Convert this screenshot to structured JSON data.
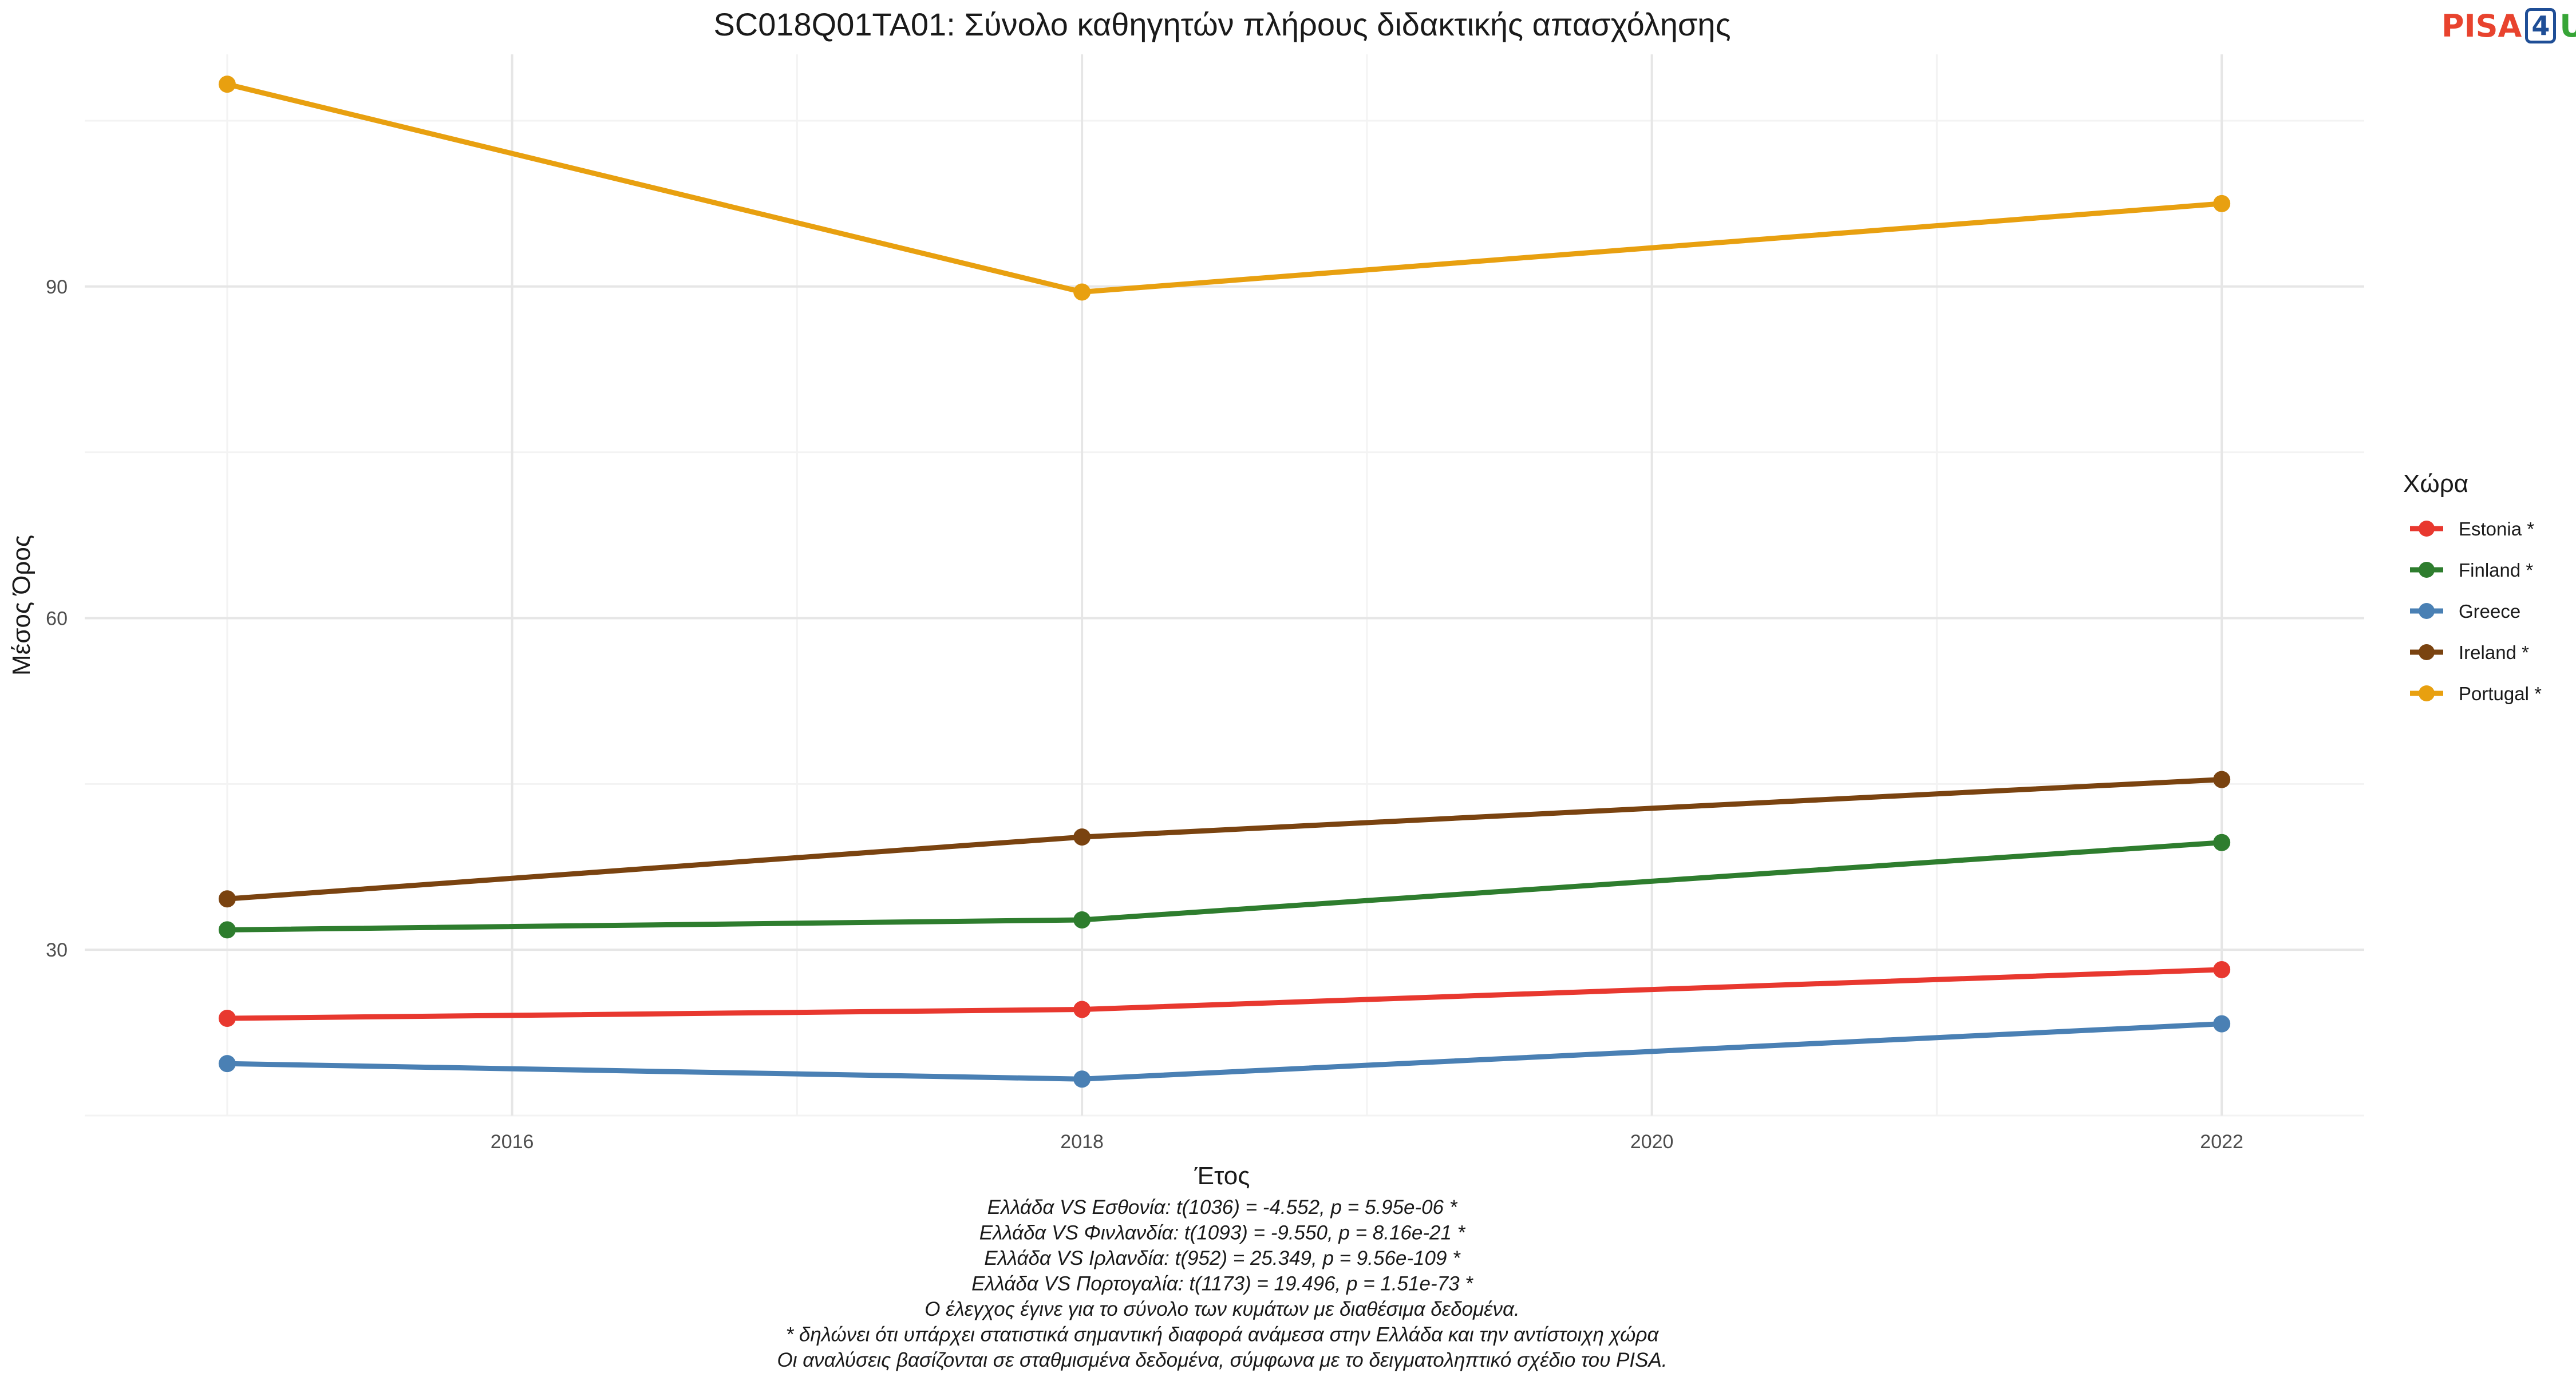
{
  "chart_data": {
    "type": "line",
    "title": "SC018Q01TA01: Σύνολο καθηγητών πλήρους διδακτικής απασχόλησης",
    "xlabel": "Έτος",
    "ylabel": "Μέσος Όρος",
    "x": [
      2015,
      2018,
      2022
    ],
    "xlim": [
      2014.5,
      2022.5
    ],
    "ylim": [
      15,
      111
    ],
    "x_ticks": [
      2016,
      2018,
      2020,
      2022
    ],
    "y_ticks": [
      30,
      60,
      90
    ],
    "grid": true,
    "legend_title": "Χώρα",
    "legend_position": "right",
    "series": [
      {
        "name": "Estonia *",
        "color": "#e8382f",
        "values": [
          23.8,
          24.6,
          28.2
        ]
      },
      {
        "name": "Finland *",
        "color": "#2e7d2e",
        "values": [
          31.8,
          32.7,
          39.7
        ]
      },
      {
        "name": "Greece",
        "color": "#4a80b4",
        "values": [
          19.7,
          18.3,
          23.3
        ]
      },
      {
        "name": "Ireland *",
        "color": "#7a4310",
        "values": [
          34.6,
          40.2,
          45.4
        ]
      },
      {
        "name": "Portugal *",
        "color": "#e8a010",
        "values": [
          108.3,
          89.5,
          97.5
        ]
      }
    ],
    "footnotes": [
      "Ελλάδα VS Εσθονία: t(1036) = -4.552, p = 5.95e-06 *",
      "Ελλάδα VS Φινλανδία: t(1093) = -9.550, p = 8.16e-21 *",
      "Ελλάδα VS Ιρλανδία: t(952) = 25.349, p = 9.56e-109 *",
      "Ελλάδα VS Πορτογαλία: t(1173) = 19.496, p = 1.51e-73 *",
      "Ο έλεγχος έγινε για το σύνολο των κυμάτων με διαθέσιμα δεδομένα.",
      "* δηλώνει ότι υπάρχει στατιστικά σημαντική διαφορά ανάμεσα στην Ελλάδα και την αντίστοιχη χώρα",
      "Οι αναλύσεις βασίζονται σε σταθμισμένα δεδομένα, σύμφωνα με το δειγματοληπτικό σχέδιο του PISA."
    ]
  },
  "logo": {
    "part1": "PISA",
    "part2": "4",
    "part3": "U"
  }
}
